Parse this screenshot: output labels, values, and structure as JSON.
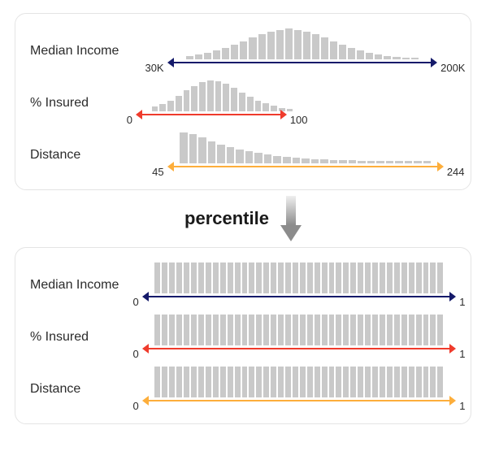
{
  "colors": {
    "bar": "#c9c9c9",
    "panel_border": "#e4e4e4",
    "text": "#2b2b2b",
    "gradient_top": "#efefef",
    "gradient_bottom": "#8c8c8c"
  },
  "transition_label": "percentile",
  "top_panel": {
    "rows": [
      {
        "id": "median-income",
        "label": "Median Income",
        "range_min": "30K",
        "range_max": "200K",
        "arrow_color": "#151a6a",
        "arrow_start_pct": 10,
        "arrow_end_pct": 92,
        "bars_start_pct": 14,
        "bars_end_pct": 88,
        "bars": [
          4,
          6,
          8,
          11,
          14,
          18,
          22,
          27,
          31,
          34,
          36,
          38,
          36,
          34,
          31,
          27,
          22,
          18,
          14,
          11,
          8,
          6,
          4,
          3,
          2,
          2
        ]
      },
      {
        "id": "pct-insured",
        "label": "% Insured",
        "range_min": "0",
        "range_max": "100",
        "arrow_color": "#ef3b2c",
        "arrow_start_pct": 0,
        "arrow_end_pct": 44,
        "bars_start_pct": 3,
        "bars_end_pct": 48,
        "bars": [
          5,
          8,
          12,
          17,
          23,
          28,
          32,
          34,
          33,
          30,
          26,
          21,
          16,
          12,
          9,
          6,
          4,
          3
        ]
      },
      {
        "id": "distance",
        "label": "Distance",
        "range_min": "45",
        "range_max": "244",
        "arrow_color": "#fdae3b",
        "arrow_start_pct": 10,
        "arrow_end_pct": 94,
        "bars_start_pct": 12,
        "bars_end_pct": 92,
        "bars": [
          36,
          34,
          30,
          26,
          22,
          19,
          16,
          14,
          12,
          10,
          9,
          8,
          7,
          6,
          5,
          5,
          4,
          4,
          4,
          3,
          3,
          3,
          3,
          3,
          3,
          3,
          3
        ]
      }
    ]
  },
  "bottom_panel": {
    "uniform_bar_count": 40,
    "uniform_bar_height": 34,
    "rows": [
      {
        "id": "median-income",
        "label": "Median Income",
        "range_min": "0",
        "range_max": "1",
        "arrow_color": "#151a6a"
      },
      {
        "id": "pct-insured",
        "label": "% Insured",
        "range_min": "0",
        "range_max": "1",
        "arrow_color": "#ef3b2c"
      },
      {
        "id": "distance",
        "label": "Distance",
        "range_min": "0",
        "range_max": "1",
        "arrow_color": "#fdae3b"
      }
    ]
  }
}
